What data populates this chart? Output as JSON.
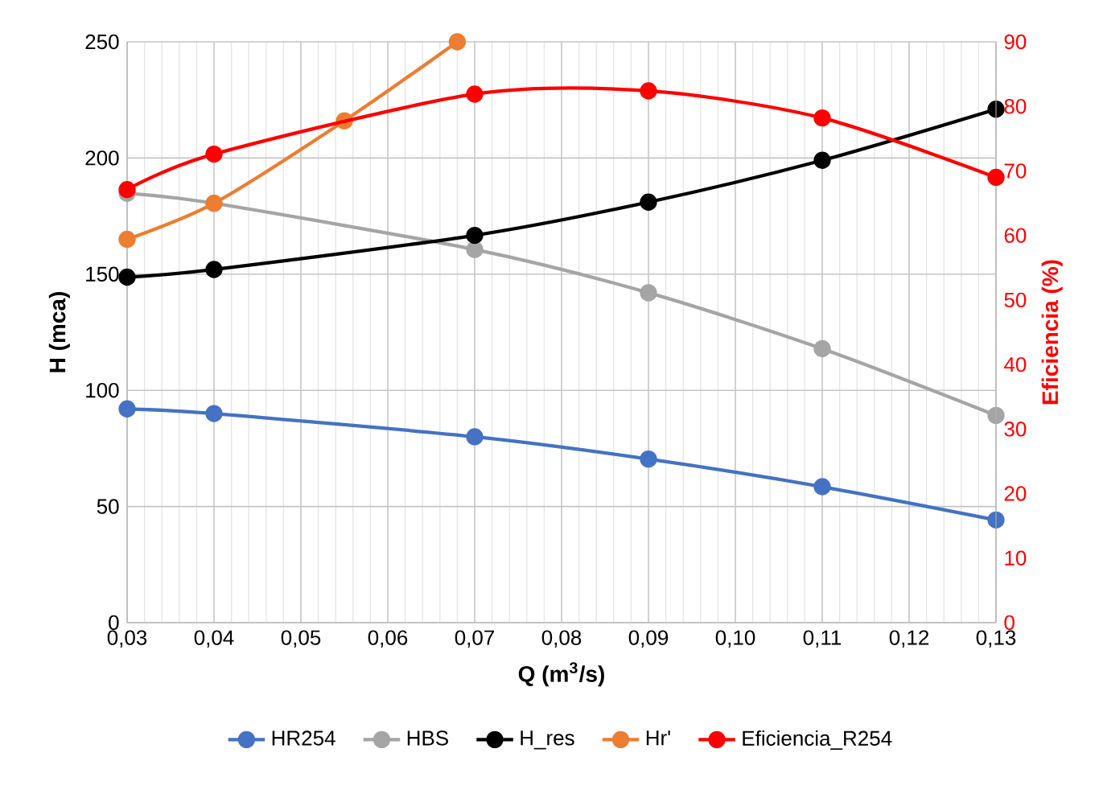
{
  "chart_data": {
    "type": "line",
    "xlabel": "Q (m$^{3}$/s)",
    "ylabel": "H (mca)",
    "y2label": "Eficiencia (%)",
    "x": [
      0.03,
      0.04,
      0.07,
      0.09,
      0.11,
      0.13
    ],
    "xlim": [
      0.03,
      0.13
    ],
    "xticks": [
      {
        "value": 0.03,
        "label": "0,03"
      },
      {
        "value": 0.04,
        "label": "0,04"
      },
      {
        "value": 0.05,
        "label": "0,05"
      },
      {
        "value": 0.06,
        "label": "0,06"
      },
      {
        "value": 0.07,
        "label": "0,07"
      },
      {
        "value": 0.08,
        "label": "0,08"
      },
      {
        "value": 0.09,
        "label": "0,09"
      },
      {
        "value": 0.1,
        "label": "0,10"
      },
      {
        "value": 0.11,
        "label": "0,11"
      },
      {
        "value": 0.12,
        "label": "0,12"
      },
      {
        "value": 0.13,
        "label": "0,13"
      }
    ],
    "ylim": [
      0,
      250
    ],
    "yticks": [
      0,
      50,
      100,
      150,
      200,
      250
    ],
    "y2lim": [
      0,
      90
    ],
    "y2ticks": [
      0,
      10,
      20,
      30,
      40,
      50,
      60,
      70,
      80,
      90
    ],
    "grid": true,
    "legend": "bottom",
    "marker": "circle",
    "series": [
      {
        "name": "HR254",
        "color": "#4472c4",
        "values": [
          92,
          90,
          80,
          70.4,
          58.5,
          44.2
        ]
      },
      {
        "name": "HBS",
        "color": "#a5a5a5",
        "values": [
          184.8,
          180.5,
          160.6,
          142,
          117.9,
          89.2
        ]
      },
      {
        "name": "H_res",
        "color": "#000000",
        "values": [
          148.7,
          152,
          166.7,
          181,
          199,
          221
        ]
      },
      {
        "name": "Hr'",
        "color": "#ed7d31",
        "x": [
          0.03,
          0.04,
          0.055,
          0.068
        ],
        "values": [
          165,
          180.5,
          216,
          250
        ]
      },
      {
        "name": "Eficiencia_R254",
        "color": "#ff0000",
        "axis": "y2",
        "values": [
          67.1,
          72.6,
          81.9,
          82.4,
          78.2,
          69.0
        ]
      }
    ]
  }
}
